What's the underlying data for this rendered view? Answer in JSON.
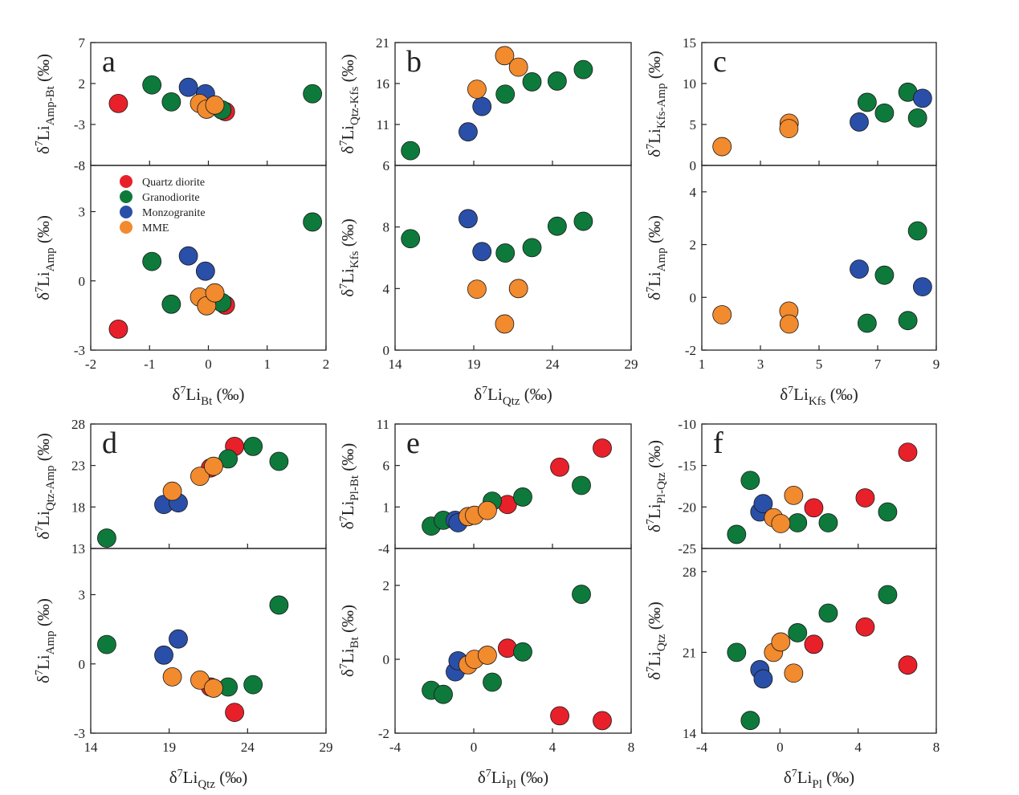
{
  "colors": {
    "Quartz diorite": "#e8202a",
    "Granodiorite": "#0d7a3b",
    "Monzogranite": "#2a4fa8",
    "MME": "#f28a2e"
  },
  "legend": [
    "Quartz diorite",
    "Granodiorite",
    "Monzogranite",
    "MME"
  ],
  "chart_data": [
    {
      "panel": "a",
      "type": "scatter",
      "xlabel": {
        "sub": "Bt"
      },
      "xlim": [
        -2,
        2
      ],
      "xticks": [
        -2,
        -1,
        0,
        1,
        2
      ],
      "subplots": [
        {
          "ylabel": {
            "sub": "Amp-Bt"
          },
          "ylim": [
            -8,
            7
          ],
          "yticks": [
            -8,
            -3,
            2,
            7
          ],
          "series": [
            {
              "name": "Quartz diorite",
              "x": [
                -1.53,
                0.29
              ],
              "y": [
                -0.44,
                -1.43
              ]
            },
            {
              "name": "Granodiorite",
              "x": [
                -0.96,
                -0.63,
                0.23,
                1.77
              ],
              "y": [
                1.83,
                -0.24,
                -1.23,
                0.75
              ]
            },
            {
              "name": "Monzogranite",
              "x": [
                -0.34,
                -0.05
              ],
              "y": [
                1.54,
                0.75
              ]
            },
            {
              "name": "MME",
              "x": [
                -0.15,
                -0.03,
                0.11
              ],
              "y": [
                -0.44,
                -1.13,
                -0.63
              ]
            }
          ]
        },
        {
          "ylabel": {
            "sub": "Amp"
          },
          "ylim": [
            -3,
            5
          ],
          "yticks": [
            -3,
            0,
            3
          ],
          "legend": "top-left",
          "series": [
            {
              "name": "Quartz diorite",
              "x": [
                -1.53,
                0.29
              ],
              "y": [
                -2.09,
                -1.05
              ]
            },
            {
              "name": "Granodiorite",
              "x": [
                -0.96,
                -0.63,
                0.23,
                1.77
              ],
              "y": [
                0.84,
                -1.01,
                -0.94,
                2.55
              ]
            },
            {
              "name": "Monzogranite",
              "x": [
                -0.34,
                -0.05
              ],
              "y": [
                1.08,
                0.42
              ]
            },
            {
              "name": "MME",
              "x": [
                -0.15,
                -0.03,
                0.11
              ],
              "y": [
                -0.7,
                -1.08,
                -0.52
              ]
            }
          ]
        }
      ]
    },
    {
      "panel": "b",
      "type": "scatter",
      "xlabel": {
        "sub": "Qtz"
      },
      "xlim": [
        14,
        29
      ],
      "xticks": [
        14,
        19,
        24,
        29
      ],
      "subplots": [
        {
          "ylabel": {
            "sub": "Qtz-Kfs"
          },
          "ylim": [
            6,
            21
          ],
          "yticks": [
            6,
            11,
            16,
            21
          ],
          "series": [
            {
              "name": "Granodiorite",
              "x": [
                14.98,
                21.0,
                22.7,
                24.3,
                25.96
              ],
              "y": [
                7.8,
                14.7,
                16.2,
                16.3,
                17.7
              ]
            },
            {
              "name": "Monzogranite",
              "x": [
                18.64,
                19.52
              ],
              "y": [
                10.1,
                13.2
              ]
            },
            {
              "name": "MME",
              "x": [
                19.2,
                20.96,
                21.84
              ],
              "y": [
                15.3,
                19.4,
                18.0
              ]
            }
          ]
        },
        {
          "ylabel": {
            "sub": "Kfs"
          },
          "ylim": [
            0,
            12
          ],
          "yticks": [
            0,
            4,
            8
          ],
          "series": [
            {
              "name": "Granodiorite",
              "x": [
                14.98,
                21.0,
                22.7,
                24.3,
                25.96
              ],
              "y": [
                7.24,
                6.31,
                6.66,
                8.05,
                8.37
              ]
            },
            {
              "name": "Monzogranite",
              "x": [
                18.64,
                19.52
              ],
              "y": [
                8.54,
                6.4
              ]
            },
            {
              "name": "MME",
              "x": [
                19.2,
                20.96,
                21.84
              ],
              "y": [
                3.96,
                1.7,
                4.0
              ]
            }
          ]
        }
      ]
    },
    {
      "panel": "c",
      "type": "scatter",
      "xlabel": {
        "sub": "Kfs"
      },
      "xlim": [
        1,
        9
      ],
      "xticks": [
        1,
        3,
        5,
        7,
        9
      ],
      "subplots": [
        {
          "ylabel": {
            "sub": "Kfs-Amp"
          },
          "ylim": [
            0,
            15
          ],
          "yticks": [
            0,
            5,
            10,
            15
          ],
          "series": [
            {
              "name": "Granodiorite",
              "x": [
                6.64,
                7.23,
                8.03,
                8.36
              ],
              "y": [
                7.7,
                6.4,
                8.94,
                5.8
              ]
            },
            {
              "name": "Monzogranite",
              "x": [
                6.37,
                8.53
              ],
              "y": [
                5.3,
                8.2
              ]
            },
            {
              "name": "MME",
              "x": [
                1.69,
                3.98,
                3.97
              ],
              "y": [
                2.3,
                5.16,
                4.5
              ]
            }
          ]
        },
        {
          "ylabel": {
            "sub": "Amp"
          },
          "ylim": [
            -2,
            5
          ],
          "yticks": [
            -2,
            0,
            2,
            4
          ],
          "series": [
            {
              "name": "Granodiorite",
              "x": [
                6.64,
                7.23,
                8.03,
                8.36
              ],
              "y": [
                -0.98,
                0.84,
                -0.88,
                2.52
              ]
            },
            {
              "name": "Monzogranite",
              "x": [
                6.37,
                8.53
              ],
              "y": [
                1.07,
                0.4
              ]
            },
            {
              "name": "MME",
              "x": [
                1.69,
                3.97,
                3.98
              ],
              "y": [
                -0.66,
                -0.52,
                -1.01
              ]
            }
          ]
        }
      ]
    },
    {
      "panel": "d",
      "type": "scatter",
      "xlabel": {
        "sub": "Qtz"
      },
      "xlim": [
        14,
        29
      ],
      "xticks": [
        14,
        19,
        24,
        29
      ],
      "subplots": [
        {
          "ylabel": {
            "sub": "Qtz-Amp"
          },
          "ylim": [
            13,
            28
          ],
          "yticks": [
            13,
            18,
            23,
            28
          ],
          "series": [
            {
              "name": "Quartz diorite",
              "x": [
                21.63,
                23.17
              ],
              "y": [
                22.7,
                25.3
              ]
            },
            {
              "name": "Granodiorite",
              "x": [
                15.02,
                22.76,
                24.35,
                26.0
              ],
              "y": [
                14.25,
                23.8,
                25.3,
                23.5
              ]
            },
            {
              "name": "Monzogranite",
              "x": [
                18.66,
                19.58
              ],
              "y": [
                18.3,
                18.5
              ]
            },
            {
              "name": "MME",
              "x": [
                19.2,
                20.96,
                21.83
              ],
              "y": [
                19.9,
                21.7,
                22.9
              ]
            }
          ]
        },
        {
          "ylabel": {
            "sub": "Amp"
          },
          "ylim": [
            -3,
            5
          ],
          "yticks": [
            -3,
            0,
            3
          ],
          "series": [
            {
              "name": "Quartz diorite",
              "x": [
                21.63,
                23.17
              ],
              "y": [
                -1.0,
                -2.1
              ]
            },
            {
              "name": "Granodiorite",
              "x": [
                15.02,
                22.76,
                24.35,
                26.0
              ],
              "y": [
                0.84,
                -1.0,
                -0.9,
                2.55
              ]
            },
            {
              "name": "Monzogranite",
              "x": [
                18.66,
                19.58
              ],
              "y": [
                0.38,
                1.08
              ]
            },
            {
              "name": "MME",
              "x": [
                19.2,
                20.96,
                21.83
              ],
              "y": [
                -0.56,
                -0.7,
                -1.05
              ]
            }
          ]
        }
      ]
    },
    {
      "panel": "e",
      "type": "scatter",
      "xlabel": {
        "sub": "Pl"
      },
      "xlim": [
        -4,
        8
      ],
      "xticks": [
        -4,
        0,
        4,
        8
      ],
      "subplots": [
        {
          "ylabel": {
            "sub": "Pl-Bt"
          },
          "ylim": [
            -4,
            11
          ],
          "yticks": [
            -4,
            1,
            6,
            11
          ],
          "series": [
            {
              "name": "Quartz diorite",
              "x": [
                1.71,
                4.37,
                6.53
              ],
              "y": [
                1.3,
                5.8,
                8.1
              ]
            },
            {
              "name": "Granodiorite",
              "x": [
                -2.16,
                -1.55,
                0.94,
                2.49,
                5.47
              ],
              "y": [
                -1.3,
                -0.6,
                1.7,
                2.2,
                3.6
              ]
            },
            {
              "name": "Monzogranite",
              "x": [
                -0.94,
                -0.8
              ],
              "y": [
                -0.6,
                -0.9
              ]
            },
            {
              "name": "MME",
              "x": [
                -0.29,
                0.04,
                0.69
              ],
              "y": [
                -0.16,
                0.0,
                0.58
              ]
            }
          ]
        },
        {
          "ylabel": {
            "sub": "Bt"
          },
          "ylim": [
            -2,
            3
          ],
          "yticks": [
            -2,
            0,
            2
          ],
          "series": [
            {
              "name": "Quartz diorite",
              "x": [
                1.71,
                4.37,
                6.53
              ],
              "y": [
                0.3,
                -1.53,
                -1.66
              ]
            },
            {
              "name": "Granodiorite",
              "x": [
                -2.16,
                -1.55,
                0.94,
                2.49,
                5.47
              ],
              "y": [
                -0.84,
                -0.95,
                -0.62,
                0.2,
                1.76
              ]
            },
            {
              "name": "Monzogranite",
              "x": [
                -0.94,
                -0.8
              ],
              "y": [
                -0.34,
                -0.04
              ]
            },
            {
              "name": "MME",
              "x": [
                -0.29,
                0.04,
                0.69
              ],
              "y": [
                -0.15,
                0.0,
                0.11
              ]
            }
          ]
        }
      ]
    },
    {
      "panel": "f",
      "type": "scatter",
      "xlabel": {
        "sub": "Pl"
      },
      "xlim": [
        -4,
        8
      ],
      "xticks": [
        -4,
        0,
        4,
        8
      ],
      "subplots": [
        {
          "ylabel": {
            "sub": "Pl-Qtz"
          },
          "ylim": [
            -25,
            -10
          ],
          "yticks": [
            -25,
            -20,
            -15,
            -10
          ],
          "series": [
            {
              "name": "Quartz diorite",
              "x": [
                1.73,
                4.36,
                6.54
              ],
              "y": [
                -20.1,
                -18.9,
                -13.4
              ]
            },
            {
              "name": "Granodiorite",
              "x": [
                -2.22,
                -1.52,
                0.9,
                2.47,
                5.51
              ],
              "y": [
                -23.3,
                -16.8,
                -21.9,
                -21.9,
                -20.6
              ]
            },
            {
              "name": "Monzogranite",
              "x": [
                -1.03,
                -0.86
              ],
              "y": [
                -20.6,
                -19.6
              ]
            },
            {
              "name": "MME",
              "x": [
                -0.33,
                0.04,
                0.7
              ],
              "y": [
                -21.3,
                -22.0,
                -18.6
              ]
            }
          ]
        },
        {
          "ylabel": {
            "sub": "Qtz"
          },
          "ylim": [
            14,
            30
          ],
          "yticks": [
            14,
            21,
            28
          ],
          "series": [
            {
              "name": "Quartz diorite",
              "x": [
                1.73,
                4.36,
                6.54
              ],
              "y": [
                21.7,
                23.2,
                19.9
              ]
            },
            {
              "name": "Granodiorite",
              "x": [
                -2.22,
                -1.52,
                0.9,
                2.47,
                5.51
              ],
              "y": [
                21.0,
                15.1,
                22.7,
                24.4,
                26.0
              ]
            },
            {
              "name": "Monzogranite",
              "x": [
                -1.03,
                -0.86
              ],
              "y": [
                19.5,
                18.7
              ]
            },
            {
              "name": "MME",
              "x": [
                -0.33,
                0.04,
                0.7
              ],
              "y": [
                21.0,
                21.9,
                19.2
              ]
            }
          ]
        }
      ]
    }
  ],
  "label_parts": {
    "prefix": "δ",
    "sup": "7",
    "base": "Li",
    "unit": " (‰)"
  }
}
